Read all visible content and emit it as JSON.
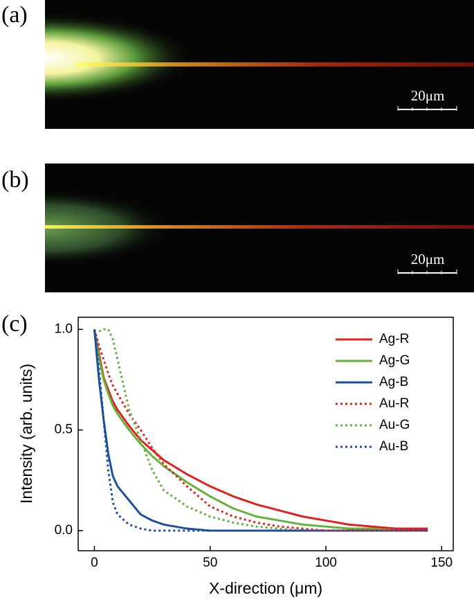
{
  "panels": [
    {
      "label": "(a)",
      "scale_bar": "20μm"
    },
    {
      "label": "(b)",
      "scale_bar": "20μm"
    }
  ],
  "chart_data": {
    "type": "line",
    "panel_label": "(c)",
    "xlabel": "X-direction (μm)",
    "ylabel": "Intensity (arb. units)",
    "xlim": [
      -7,
      155
    ],
    "ylim": [
      -0.1,
      1.06
    ],
    "xticks": [
      0,
      50,
      100,
      150
    ],
    "yticks": [
      {
        "value": 0,
        "label": "0.0"
      },
      {
        "value": 0.5,
        "label": "0.5"
      },
      {
        "value": 1,
        "label": "1.0"
      }
    ],
    "legend": "upper right",
    "x": [
      0,
      2,
      4,
      6,
      8,
      10,
      15,
      20,
      25,
      30,
      40,
      50,
      60,
      70,
      80,
      90,
      100,
      110,
      120,
      130,
      144
    ],
    "series": [
      {
        "name": "Ag-R",
        "color": "#e0211d",
        "linestyle": "solid",
        "values": [
          1.0,
          0.88,
          0.76,
          0.7,
          0.64,
          0.6,
          0.52,
          0.45,
          0.4,
          0.35,
          0.28,
          0.22,
          0.17,
          0.13,
          0.1,
          0.07,
          0.05,
          0.03,
          0.02,
          0.01,
          0.01
        ]
      },
      {
        "name": "Ag-G",
        "color": "#66b03c",
        "linestyle": "solid",
        "values": [
          1.0,
          0.86,
          0.75,
          0.68,
          0.62,
          0.58,
          0.5,
          0.43,
          0.37,
          0.32,
          0.24,
          0.17,
          0.11,
          0.07,
          0.05,
          0.03,
          0.02,
          0.01,
          0.01,
          0.0,
          0.0
        ]
      },
      {
        "name": "Ag-B",
        "color": "#1c4f9c",
        "linestyle": "solid",
        "values": [
          1.0,
          0.75,
          0.55,
          0.38,
          0.27,
          0.22,
          0.15,
          0.08,
          0.05,
          0.03,
          0.01,
          0.0,
          0.0,
          0.0,
          0.0,
          0.0,
          0.0,
          0.0,
          0.0,
          0.0,
          0.0
        ]
      },
      {
        "name": "Au-R",
        "color": "#e0211d",
        "linestyle": "dotted",
        "values": [
          1.0,
          0.92,
          0.85,
          0.78,
          0.72,
          0.68,
          0.58,
          0.5,
          0.41,
          0.33,
          0.22,
          0.12,
          0.07,
          0.04,
          0.02,
          0.01,
          0.0,
          0.0,
          0.0,
          0.0,
          0.0
        ]
      },
      {
        "name": "Au-G",
        "color": "#66b03c",
        "linestyle": "dotted",
        "values": [
          null,
          0.99,
          1.0,
          1.0,
          0.95,
          0.85,
          0.6,
          0.45,
          0.3,
          0.2,
          0.12,
          0.07,
          0.04,
          0.02,
          0.01,
          0.0,
          0.0,
          0.0,
          0.0,
          0.0,
          0.0
        ]
      },
      {
        "name": "Au-B",
        "color": "#1c4f9c",
        "linestyle": "dotted",
        "values": [
          1.0,
          0.8,
          0.55,
          0.3,
          0.14,
          0.08,
          0.03,
          0.01,
          0.0,
          0.0,
          0.0,
          0.0,
          0.0,
          0.0,
          0.0,
          0.0,
          0.0,
          0.0,
          0.0,
          0.0,
          0.0
        ]
      }
    ]
  }
}
